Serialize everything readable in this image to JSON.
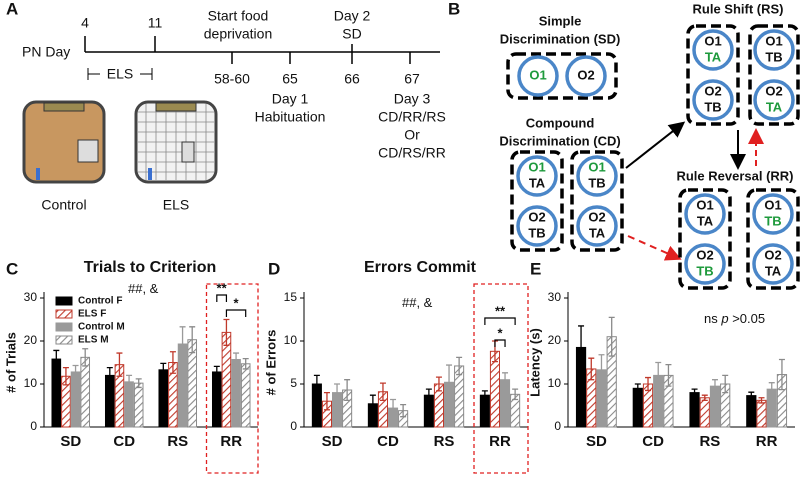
{
  "panel_labels": [
    "A",
    "B",
    "C",
    "D",
    "E"
  ],
  "timeline": {
    "axis_label": "PN Day",
    "days": [
      "4",
      "11",
      "58-60",
      "65",
      "66",
      "67"
    ],
    "period": "ELS",
    "food": [
      "Start food",
      "deprivation"
    ],
    "day2": [
      "Day 2",
      "SD"
    ],
    "day1": [
      "Day 1",
      "Habituation"
    ],
    "day3": [
      "Day 3",
      "CD/RR/RS",
      "Or",
      "CD/RS/RR"
    ],
    "groups": [
      "Control",
      "ELS"
    ]
  },
  "discrimination": {
    "stages": [
      {
        "title": [
          "Simple",
          "Discrimination (SD)"
        ],
        "boxes": [
          [
            [
              "O1"
            ],
            [
              "O2"
            ]
          ]
        ]
      },
      {
        "title": [
          "Compound",
          "Discrimination (CD)"
        ],
        "boxes": [
          [
            [
              "O1",
              "TA"
            ],
            [
              "O2",
              "TB"
            ]
          ],
          [
            [
              "O1",
              "TB"
            ],
            [
              "O2",
              "TA"
            ]
          ]
        ]
      },
      {
        "title": [
          "Rule Shift (RS)"
        ],
        "boxes": [
          [
            [
              "O1",
              "TA"
            ],
            [
              "O2",
              "TB"
            ]
          ],
          [
            [
              "O1",
              "TB"
            ],
            [
              "O2",
              "TA"
            ]
          ]
        ]
      },
      {
        "title": [
          "Rule Reversal (RR)"
        ],
        "boxes": [
          [
            [
              "O1",
              "TA"
            ],
            [
              "O2",
              "TB"
            ]
          ],
          [
            [
              "O1",
              "TB"
            ],
            [
              "O2",
              "TA"
            ]
          ]
        ]
      }
    ]
  },
  "chart_data": [
    {
      "type": "bar",
      "title": "Trials to Criterion",
      "ylabel": "# of Trials",
      "annotation": [
        "##, &"
      ],
      "significance": [
        "**",
        "*"
      ],
      "categories": [
        "SD",
        "CD",
        "RS",
        "RR"
      ],
      "ylim": [
        0,
        30
      ],
      "yticks": [
        0,
        10,
        20,
        30
      ],
      "series": [
        {
          "name": "Control F",
          "color": "#000000",
          "pattern": "solid",
          "values": [
            15.8,
            12,
            13.3,
            12.8
          ],
          "errors": [
            2,
            1.8,
            1.5,
            1.3
          ]
        },
        {
          "name": "ELS F",
          "color": "#c0392b",
          "pattern": "hatch",
          "values": [
            11.8,
            14.5,
            15,
            22
          ],
          "errors": [
            2,
            2.7,
            2.5,
            3
          ]
        },
        {
          "name": "Control M",
          "color": "#9a9a9a",
          "pattern": "solid",
          "values": [
            12.8,
            10.5,
            19.3,
            15.7
          ],
          "errors": [
            1.5,
            1.5,
            4,
            1.5
          ]
        },
        {
          "name": "ELS M",
          "color": "#8a8a8a",
          "pattern": "hatch",
          "values": [
            16.2,
            10.2,
            20.3,
            14.7
          ],
          "errors": [
            2,
            1,
            3,
            1.2
          ]
        }
      ]
    },
    {
      "type": "bar",
      "title": "Errors Commit",
      "ylabel": "# of Errors",
      "annotation": [
        "##, &"
      ],
      "significance": [
        "**",
        "*"
      ],
      "categories": [
        "SD",
        "CD",
        "RS",
        "RR"
      ],
      "ylim": [
        0,
        15
      ],
      "yticks": [
        0,
        5,
        10,
        15
      ],
      "series": [
        {
          "color": "#000000",
          "pattern": "solid",
          "values": [
            5,
            2.7,
            3.7,
            3.7
          ],
          "errors": [
            1,
            1,
            0.7,
            0.5
          ]
        },
        {
          "color": "#c0392b",
          "pattern": "hatch",
          "values": [
            3,
            4.1,
            5,
            8.8
          ],
          "errors": [
            1,
            1,
            0.8,
            1.2
          ]
        },
        {
          "color": "#9a9a9a",
          "pattern": "solid",
          "values": [
            4,
            2.2,
            5.2,
            5.5
          ],
          "errors": [
            1,
            1,
            2,
            0.8
          ]
        },
        {
          "color": "#8a8a8a",
          "pattern": "hatch",
          "values": [
            4.3,
            1.9,
            7.1,
            3.8
          ],
          "errors": [
            1.2,
            0.7,
            1,
            0.6
          ]
        }
      ]
    },
    {
      "type": "bar",
      "ylabel": "Latency (s)",
      "annotation": [
        "ns ",
        "p",
        " >0.05"
      ],
      "categories": [
        "SD",
        "CD",
        "RS",
        "RR"
      ],
      "ylim": [
        0,
        30
      ],
      "yticks": [
        0,
        10,
        20,
        30
      ],
      "series": [
        {
          "color": "#000000",
          "pattern": "solid",
          "values": [
            18.5,
            9,
            8,
            7.3
          ],
          "errors": [
            5,
            1,
            0.8,
            0.8
          ]
        },
        {
          "color": "#c0392b",
          "pattern": "hatch",
          "values": [
            13.5,
            10,
            6.8,
            6.2
          ],
          "errors": [
            2.5,
            1.5,
            0.6,
            0.6
          ]
        },
        {
          "color": "#9a9a9a",
          "pattern": "solid",
          "values": [
            13.3,
            12,
            9.5,
            8.8
          ],
          "errors": [
            3.5,
            3,
            1.5,
            1.5
          ]
        },
        {
          "color": "#8a8a8a",
          "pattern": "hatch",
          "values": [
            21,
            12,
            10,
            12.2
          ],
          "errors": [
            4.5,
            2.5,
            2,
            3.5
          ]
        }
      ]
    }
  ]
}
